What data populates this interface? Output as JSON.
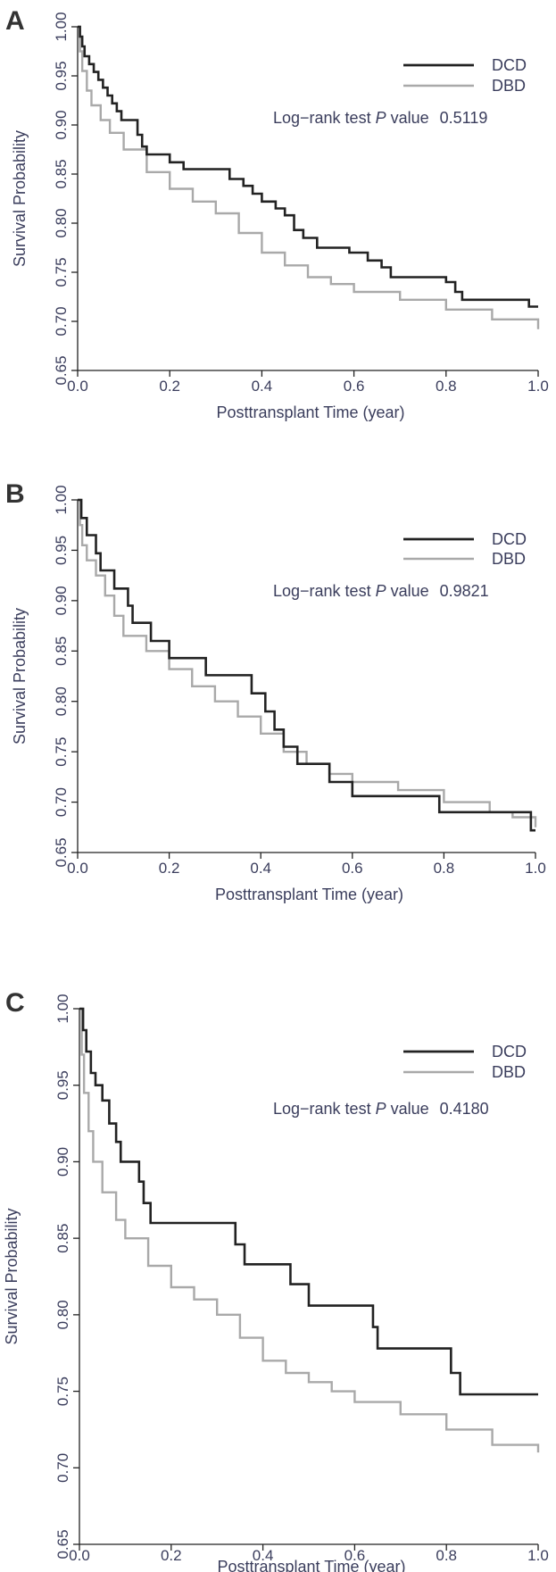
{
  "chart_data": [
    {
      "panel": "A",
      "type": "line",
      "step": true,
      "xlabel": "Posttransplant Time (year)",
      "ylabel": "Survival Probability",
      "xlim": [
        0.0,
        1.0
      ],
      "ylim": [
        0.65,
        1.0
      ],
      "xticks": [
        "0.0",
        "0.2",
        "0.4",
        "0.6",
        "0.8",
        "1.0"
      ],
      "yticks": [
        "0.65",
        "0.70",
        "0.75",
        "0.80",
        "0.85",
        "0.90",
        "0.95",
        "1.00"
      ],
      "legend": {
        "position": "top-right"
      },
      "annotation": {
        "prefix": "Log−rank test ",
        "p_symbol": "P",
        "suffix": " value",
        "value": "0.5119"
      },
      "series": [
        {
          "name": "DCD",
          "color": "#222222",
          "points": [
            [
              0,
              1.0
            ],
            [
              0.005,
              0.99
            ],
            [
              0.01,
              0.98
            ],
            [
              0.015,
              0.97
            ],
            [
              0.025,
              0.962
            ],
            [
              0.035,
              0.954
            ],
            [
              0.045,
              0.946
            ],
            [
              0.055,
              0.938
            ],
            [
              0.065,
              0.93
            ],
            [
              0.075,
              0.922
            ],
            [
              0.085,
              0.914
            ],
            [
              0.095,
              0.905
            ],
            [
              0.13,
              0.89
            ],
            [
              0.14,
              0.878
            ],
            [
              0.15,
              0.87
            ],
            [
              0.2,
              0.862
            ],
            [
              0.23,
              0.855
            ],
            [
              0.33,
              0.845
            ],
            [
              0.36,
              0.838
            ],
            [
              0.38,
              0.83
            ],
            [
              0.4,
              0.822
            ],
            [
              0.43,
              0.815
            ],
            [
              0.45,
              0.808
            ],
            [
              0.47,
              0.793
            ],
            [
              0.49,
              0.785
            ],
            [
              0.52,
              0.775
            ],
            [
              0.59,
              0.77
            ],
            [
              0.63,
              0.762
            ],
            [
              0.66,
              0.755
            ],
            [
              0.68,
              0.745
            ],
            [
              0.8,
              0.74
            ],
            [
              0.82,
              0.73
            ],
            [
              0.835,
              0.722
            ],
            [
              0.98,
              0.715
            ],
            [
              1.0,
              0.715
            ]
          ]
        },
        {
          "name": "DBD",
          "color": "#a9a9a9",
          "points": [
            [
              0,
              1.0
            ],
            [
              0.005,
              0.975
            ],
            [
              0.01,
              0.955
            ],
            [
              0.02,
              0.935
            ],
            [
              0.03,
              0.92
            ],
            [
              0.05,
              0.905
            ],
            [
              0.07,
              0.892
            ],
            [
              0.1,
              0.875
            ],
            [
              0.15,
              0.852
            ],
            [
              0.2,
              0.835
            ],
            [
              0.25,
              0.822
            ],
            [
              0.3,
              0.81
            ],
            [
              0.35,
              0.79
            ],
            [
              0.4,
              0.77
            ],
            [
              0.45,
              0.757
            ],
            [
              0.5,
              0.745
            ],
            [
              0.55,
              0.738
            ],
            [
              0.6,
              0.73
            ],
            [
              0.7,
              0.722
            ],
            [
              0.8,
              0.712
            ],
            [
              0.9,
              0.702
            ],
            [
              1.0,
              0.692
            ]
          ]
        }
      ]
    },
    {
      "panel": "B",
      "type": "line",
      "step": true,
      "xlabel": "Posttransplant Time (year)",
      "ylabel": "Survival Probability",
      "xlim": [
        0.0,
        1.0
      ],
      "ylim": [
        0.65,
        1.0
      ],
      "xticks": [
        "0.0",
        "0.2",
        "0.4",
        "0.6",
        "0.8",
        "1.0"
      ],
      "yticks": [
        "0.65",
        "0.70",
        "0.75",
        "0.80",
        "0.85",
        "0.90",
        "0.95",
        "1.00"
      ],
      "legend": {
        "position": "top-right"
      },
      "annotation": {
        "prefix": "Log−rank test ",
        "p_symbol": "P",
        "suffix": " value",
        "value": "0.9821"
      },
      "series": [
        {
          "name": "DCD",
          "color": "#222222",
          "points": [
            [
              0,
              1.0
            ],
            [
              0.008,
              0.982
            ],
            [
              0.02,
              0.965
            ],
            [
              0.04,
              0.947
            ],
            [
              0.05,
              0.93
            ],
            [
              0.08,
              0.912
            ],
            [
              0.11,
              0.895
            ],
            [
              0.12,
              0.878
            ],
            [
              0.16,
              0.86
            ],
            [
              0.2,
              0.843
            ],
            [
              0.28,
              0.826
            ],
            [
              0.38,
              0.808
            ],
            [
              0.41,
              0.79
            ],
            [
              0.43,
              0.772
            ],
            [
              0.45,
              0.755
            ],
            [
              0.48,
              0.738
            ],
            [
              0.55,
              0.72
            ],
            [
              0.6,
              0.706
            ],
            [
              0.79,
              0.69
            ],
            [
              0.99,
              0.672
            ],
            [
              1.0,
              0.672
            ]
          ]
        },
        {
          "name": "DBD",
          "color": "#a9a9a9",
          "points": [
            [
              0,
              1.0
            ],
            [
              0.005,
              0.975
            ],
            [
              0.01,
              0.955
            ],
            [
              0.02,
              0.94
            ],
            [
              0.04,
              0.925
            ],
            [
              0.06,
              0.905
            ],
            [
              0.08,
              0.885
            ],
            [
              0.1,
              0.865
            ],
            [
              0.15,
              0.85
            ],
            [
              0.2,
              0.832
            ],
            [
              0.25,
              0.815
            ],
            [
              0.3,
              0.8
            ],
            [
              0.35,
              0.785
            ],
            [
              0.4,
              0.768
            ],
            [
              0.45,
              0.75
            ],
            [
              0.5,
              0.738
            ],
            [
              0.55,
              0.728
            ],
            [
              0.6,
              0.72
            ],
            [
              0.7,
              0.712
            ],
            [
              0.8,
              0.7
            ],
            [
              0.9,
              0.69
            ],
            [
              0.95,
              0.685
            ],
            [
              1.0,
              0.675
            ]
          ]
        }
      ]
    },
    {
      "panel": "C",
      "type": "line",
      "step": true,
      "xlabel": "Posttransplant Time (year)",
      "ylabel": "Survival Probability",
      "xlim": [
        0.0,
        1.0
      ],
      "ylim": [
        0.65,
        1.0
      ],
      "xticks": [
        "0.0",
        "0.2",
        "0.4",
        "0.6",
        "0.8",
        "1.0"
      ],
      "yticks": [
        "0.65",
        "0.70",
        "0.75",
        "0.80",
        "0.85",
        "0.90",
        "0.95",
        "1.00"
      ],
      "legend": {
        "position": "top-right"
      },
      "annotation": {
        "prefix": "Log−rank test ",
        "p_symbol": "P",
        "suffix": " value",
        "value": "0.4180"
      },
      "series": [
        {
          "name": "DCD",
          "color": "#222222",
          "points": [
            [
              0,
              1.0
            ],
            [
              0.008,
              0.986
            ],
            [
              0.015,
              0.972
            ],
            [
              0.025,
              0.958
            ],
            [
              0.035,
              0.95
            ],
            [
              0.05,
              0.94
            ],
            [
              0.065,
              0.925
            ],
            [
              0.08,
              0.913
            ],
            [
              0.09,
              0.9
            ],
            [
              0.13,
              0.887
            ],
            [
              0.14,
              0.873
            ],
            [
              0.155,
              0.86
            ],
            [
              0.34,
              0.846
            ],
            [
              0.36,
              0.833
            ],
            [
              0.46,
              0.82
            ],
            [
              0.5,
              0.806
            ],
            [
              0.64,
              0.792
            ],
            [
              0.65,
              0.778
            ],
            [
              0.81,
              0.762
            ],
            [
              0.83,
              0.748
            ],
            [
              1.0,
              0.748
            ]
          ]
        },
        {
          "name": "DBD",
          "color": "#a9a9a9",
          "points": [
            [
              0,
              1.0
            ],
            [
              0.005,
              0.97
            ],
            [
              0.01,
              0.945
            ],
            [
              0.02,
              0.92
            ],
            [
              0.03,
              0.9
            ],
            [
              0.05,
              0.88
            ],
            [
              0.08,
              0.862
            ],
            [
              0.1,
              0.85
            ],
            [
              0.15,
              0.832
            ],
            [
              0.2,
              0.818
            ],
            [
              0.25,
              0.81
            ],
            [
              0.3,
              0.8
            ],
            [
              0.35,
              0.785
            ],
            [
              0.4,
              0.77
            ],
            [
              0.45,
              0.762
            ],
            [
              0.5,
              0.756
            ],
            [
              0.55,
              0.75
            ],
            [
              0.6,
              0.743
            ],
            [
              0.7,
              0.735
            ],
            [
              0.8,
              0.725
            ],
            [
              0.9,
              0.715
            ],
            [
              1.0,
              0.71
            ]
          ]
        }
      ]
    }
  ]
}
